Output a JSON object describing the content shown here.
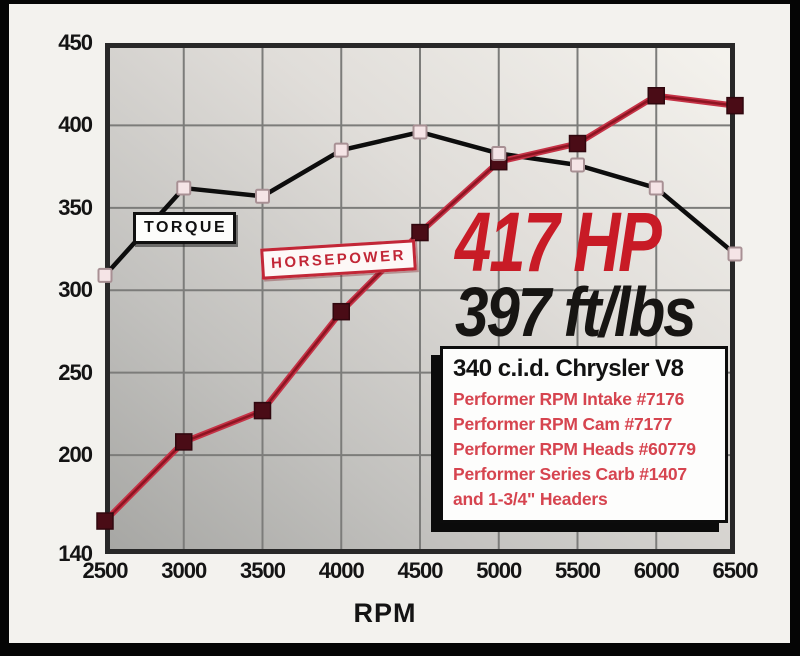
{
  "colors": {
    "accent_red": "#c81b26",
    "hp_line_outer": "#c53246",
    "hp_line_inner": "#8e1422",
    "hp_marker": "#4a0c16",
    "torque_line": "#0d0d0d",
    "torque_marker_fill": "#f5e4e6",
    "torque_marker_stroke": "#a89094",
    "label_box_red": "#c22737",
    "info_red": "#d6444f",
    "grid": "#7c7c7a",
    "plot_border": "#282828"
  },
  "chart_data": {
    "type": "line",
    "xlabel": "RPM",
    "ylabel": "",
    "xlim": [
      2500,
      6500
    ],
    "ylim": [
      140,
      450
    ],
    "xticks": [
      2500,
      3000,
      3500,
      4000,
      4500,
      5000,
      5500,
      6000,
      6500
    ],
    "yticks": [
      140,
      200,
      250,
      300,
      350,
      400,
      450
    ],
    "grid": true,
    "legend_position": "on-curve-labels",
    "x": [
      2500,
      3000,
      3500,
      4000,
      4500,
      5000,
      5500,
      6000,
      6500
    ],
    "series": [
      {
        "name": "TORQUE",
        "values": [
          309,
          362,
          357,
          385,
          396,
          383,
          376,
          362,
          322
        ]
      },
      {
        "name": "HORSEPOWER",
        "values": [
          160,
          208,
          227,
          287,
          335,
          378,
          389,
          418,
          412
        ]
      }
    ]
  },
  "annotations": {
    "torque_label": "TORQUE",
    "horsepower_label": "HORSEPOWER",
    "peak_hp": "417 HP",
    "peak_torque": "397 ft/lbs"
  },
  "info_box": {
    "title": "340 c.i.d. Chrysler V8",
    "lines": [
      "Performer RPM Intake #7176",
      "Performer RPM Cam #7177",
      "Performer RPM Heads #60779",
      "Performer Series Carb #1407",
      "and 1-3/4\" Headers"
    ]
  }
}
